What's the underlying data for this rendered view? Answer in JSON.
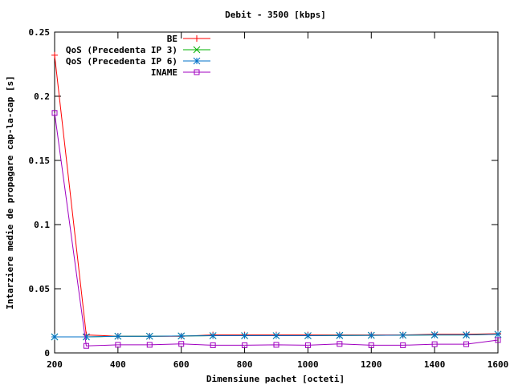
{
  "chart_data": {
    "type": "line",
    "title": "Debit - 3500 [kbps]",
    "xlabel": "Dimensiune pachet [octeti]",
    "ylabel": "Intarziere medie de propagare cap-la-cap [s]",
    "xlim": [
      200,
      1600
    ],
    "ylim": [
      0,
      0.25
    ],
    "xticks": [
      200,
      400,
      600,
      800,
      1000,
      1200,
      1400,
      1600
    ],
    "yticks": [
      0,
      0.05,
      0.1,
      0.15,
      0.2,
      0.25
    ],
    "xtick_labels": [
      "200",
      "400",
      "600",
      "800",
      "1000",
      "1200",
      "1400",
      "1600"
    ],
    "ytick_labels": [
      "0",
      "0.05",
      "0.1",
      "0.15",
      "0.2",
      "0.25"
    ],
    "grid": false,
    "legend_position": "top-left",
    "x": [
      200,
      300,
      400,
      500,
      600,
      700,
      800,
      900,
      1000,
      1100,
      1200,
      1300,
      1400,
      1500,
      1600
    ],
    "series": [
      {
        "name": "BE",
        "color": "#ff0000",
        "marker": "plus",
        "values": [
          0.232,
          0.014,
          0.013,
          0.013,
          0.013,
          0.014,
          0.014,
          0.014,
          0.014,
          0.014,
          0.014,
          0.014,
          0.0145,
          0.0145,
          0.015
        ]
      },
      {
        "name": "QoS (Precedenta IP 3)",
        "color": "#00b000",
        "marker": "cross",
        "values": [
          0.0125,
          0.0125,
          0.013,
          0.013,
          0.0132,
          0.0134,
          0.0134,
          0.0134,
          0.0134,
          0.0136,
          0.0137,
          0.0138,
          0.014,
          0.014,
          0.0145
        ]
      },
      {
        "name": "QoS (Precedenta IP 6)",
        "color": "#0070c8",
        "marker": "star",
        "values": [
          0.0125,
          0.0125,
          0.013,
          0.013,
          0.0132,
          0.0134,
          0.0134,
          0.0134,
          0.0134,
          0.0136,
          0.0137,
          0.0138,
          0.014,
          0.014,
          0.0145
        ]
      },
      {
        "name": "INAME",
        "color": "#a000c0",
        "marker": "square",
        "values": [
          0.187,
          0.0055,
          0.0063,
          0.0063,
          0.007,
          0.006,
          0.006,
          0.0063,
          0.006,
          0.007,
          0.006,
          0.006,
          0.0068,
          0.0068,
          0.01
        ]
      }
    ]
  }
}
